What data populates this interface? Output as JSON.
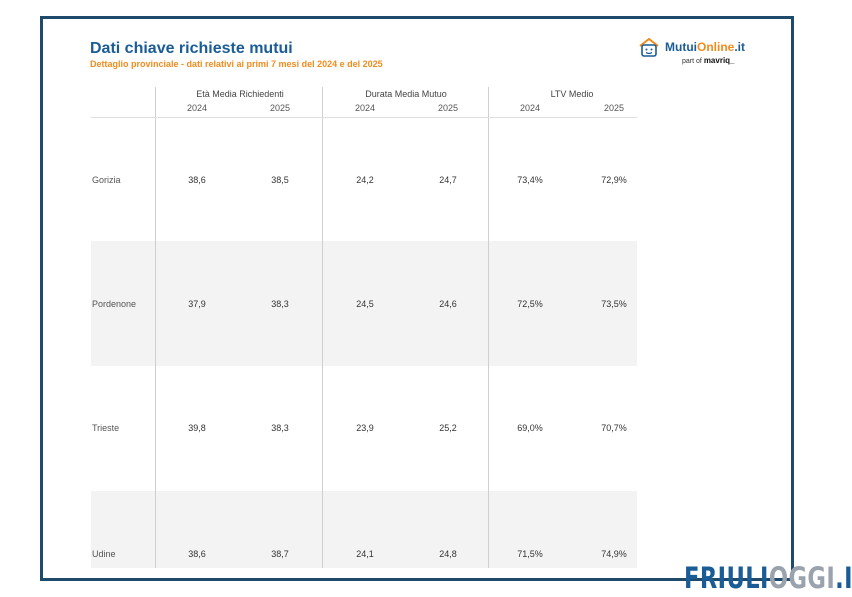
{
  "header": {
    "title": "Dati chiave richieste mutui",
    "subtitle": "Dettaglio provinciale - dati relativi ai primi 7 mesi del 2024 e del 2025"
  },
  "logo": {
    "name_a": "Mutui",
    "name_b": "Online",
    "name_c": ".it",
    "part_of": "part of",
    "parent": "mavriq_"
  },
  "table": {
    "groups": [
      "Età Media Richiedenti",
      "Durata Media Mutuo",
      "LTV Medio"
    ],
    "years": [
      "2024",
      "2025",
      "2024",
      "2025",
      "2024",
      "2025"
    ],
    "rows": [
      {
        "label": "Gorizia",
        "values": [
          "38,6",
          "38,5",
          "24,2",
          "24,7",
          "73,4%",
          "72,9%"
        ]
      },
      {
        "label": "Pordenone",
        "values": [
          "37,9",
          "38,3",
          "24,5",
          "24,6",
          "72,5%",
          "73,5%"
        ]
      },
      {
        "label": "Trieste",
        "values": [
          "39,8",
          "38,3",
          "23,9",
          "25,2",
          "69,0%",
          "70,7%"
        ]
      },
      {
        "label": "Udine",
        "values": [
          "38,6",
          "38,7",
          "24,1",
          "24,8",
          "71,5%",
          "74,9%"
        ]
      }
    ]
  },
  "watermark": {
    "part1": "FRIULI",
    "part2": "OGGI",
    "part3": ".IT"
  }
}
